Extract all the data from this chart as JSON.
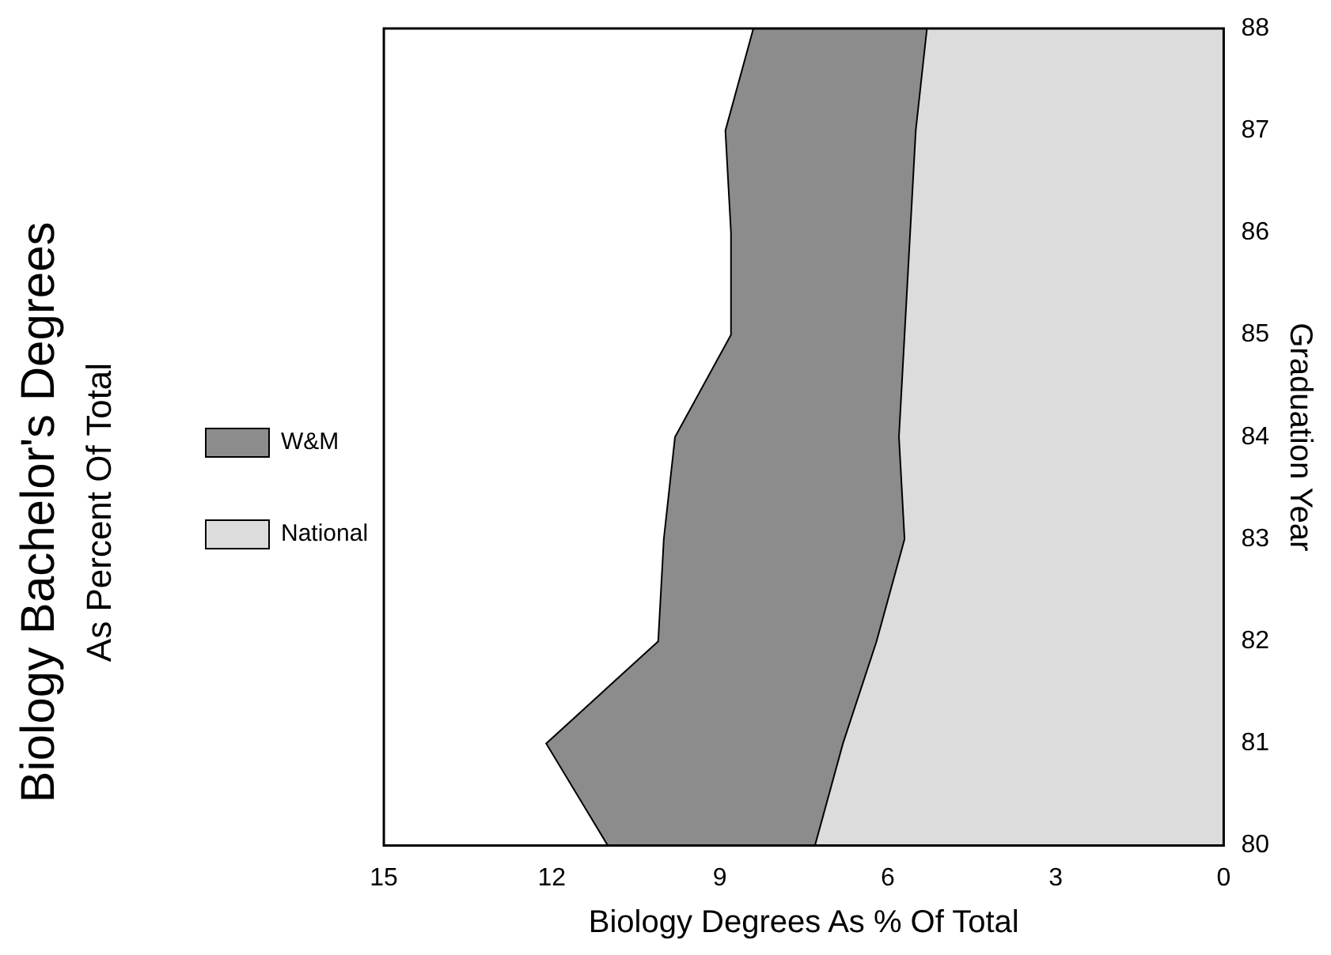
{
  "chart_data": {
    "type": "area",
    "orientation": "horizontal",
    "title": "Biology Bachelor's Degrees",
    "subtitle": "As Percent Of Total",
    "ylabel": "Graduation Year",
    "xlabel": "Biology Degrees As % Of Total",
    "categories": [
      "88",
      "87",
      "86",
      "85",
      "84",
      "83",
      "82",
      "81",
      "80"
    ],
    "series": [
      {
        "name": "W&M",
        "color": "#8c8c8c",
        "values": [
          8.4,
          8.9,
          8.8,
          8.8,
          9.8,
          10.0,
          10.1,
          12.1,
          11.0
        ]
      },
      {
        "name": "National",
        "color": "#dcdcdc",
        "values": [
          5.3,
          5.5,
          5.6,
          5.7,
          5.8,
          5.7,
          6.2,
          6.8,
          7.3
        ]
      }
    ],
    "xlim": [
      15,
      0
    ],
    "xticks": [
      15,
      12,
      9,
      6,
      3,
      0
    ],
    "legend": "left",
    "grid": false
  }
}
